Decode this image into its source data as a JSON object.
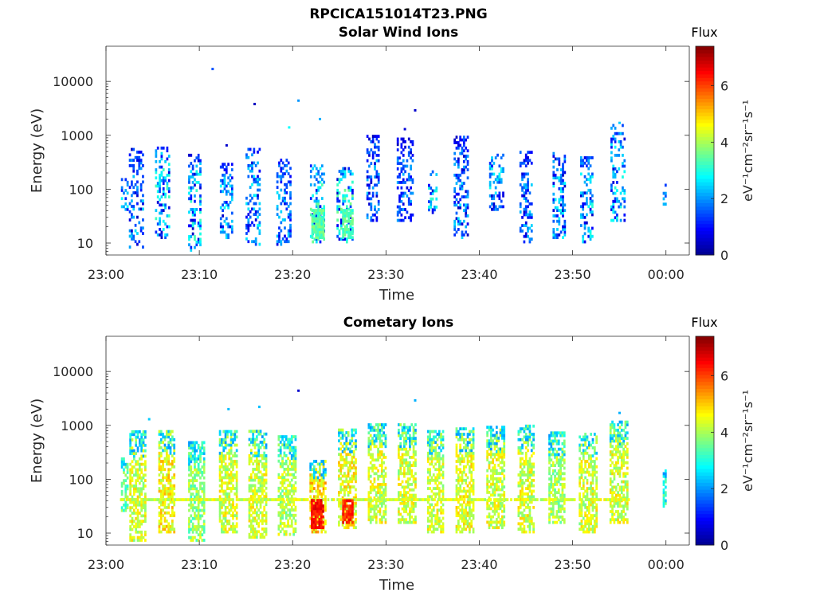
{
  "figure_title": "RPCICA151014T23.PNG",
  "colormap": [
    "#00008f",
    "#0000ff",
    "#0080ff",
    "#00ffff",
    "#80ff80",
    "#ffff00",
    "#ff8000",
    "#ff0000",
    "#800000"
  ],
  "chart_data": [
    {
      "type": "heatmap",
      "title": "Solar Wind Ions",
      "xlabel": "Time",
      "ylabel": "Energy (eV)",
      "x_ticks": [
        "23:00",
        "23:10",
        "23:20",
        "23:30",
        "23:40",
        "23:50",
        "00:00"
      ],
      "xlim_minutes": [
        0,
        62.5
      ],
      "y_scale": "log",
      "ylim": [
        6,
        45000
      ],
      "y_ticks": [
        "10",
        "100",
        "1000",
        "10000"
      ],
      "colorbar": {
        "label": "Flux",
        "unit": "eV⁻¹cm⁻²sr⁻¹s⁻¹",
        "range": [
          0,
          7.4
        ],
        "ticks": [
          "0",
          "2",
          "4",
          "6"
        ]
      },
      "bursts": [
        {
          "t": 2.0,
          "w": 0.8,
          "emin": 40,
          "emax": 150,
          "int": 2.3
        },
        {
          "t": 3.2,
          "w": 1.5,
          "emin": 8,
          "emax": 550,
          "int": 1.9
        },
        {
          "t": 6.0,
          "w": 1.5,
          "emin": 12,
          "emax": 600,
          "int": 2.6
        },
        {
          "t": 9.4,
          "w": 1.2,
          "emin": 7,
          "emax": 450,
          "int": 2.6
        },
        {
          "t": 12.8,
          "w": 1.2,
          "emin": 12,
          "emax": 300,
          "int": 2.1
        },
        {
          "t": 15.7,
          "w": 1.5,
          "emin": 9,
          "emax": 550,
          "int": 2.2
        },
        {
          "t": 19.0,
          "w": 1.5,
          "emin": 9,
          "emax": 350,
          "int": 1.9
        },
        {
          "t": 22.6,
          "w": 1.5,
          "emin": 10,
          "emax": 260,
          "int": 2.9
        },
        {
          "t": 25.5,
          "w": 1.6,
          "emin": 10,
          "emax": 230,
          "int": 3.0
        },
        {
          "t": 28.5,
          "w": 1.2,
          "emin": 25,
          "emax": 1000,
          "int": 1.8
        },
        {
          "t": 32.0,
          "w": 1.7,
          "emin": 25,
          "emax": 900,
          "int": 1.6
        },
        {
          "t": 35.0,
          "w": 1.0,
          "emin": 35,
          "emax": 250,
          "int": 2.5
        },
        {
          "t": 38.0,
          "w": 1.5,
          "emin": 12,
          "emax": 950,
          "int": 1.9
        },
        {
          "t": 41.8,
          "w": 1.5,
          "emin": 40,
          "emax": 500,
          "int": 2.3
        },
        {
          "t": 45.0,
          "w": 1.4,
          "emin": 10,
          "emax": 500,
          "int": 1.8
        },
        {
          "t": 48.5,
          "w": 1.3,
          "emin": 12,
          "emax": 450,
          "int": 2.2
        },
        {
          "t": 51.5,
          "w": 1.4,
          "emin": 10,
          "emax": 400,
          "int": 2.4
        },
        {
          "t": 54.8,
          "w": 1.5,
          "emin": 25,
          "emax": 1500,
          "int": 2.4
        },
        {
          "t": 59.8,
          "w": 0.3,
          "emin": 50,
          "emax": 120,
          "int": 1.6
        }
      ],
      "hot_spots": [
        {
          "t": 22.6,
          "w": 1.2,
          "emin": 12,
          "emax": 40,
          "int": 3.4
        },
        {
          "t": 25.8,
          "w": 1.0,
          "emin": 12,
          "emax": 40,
          "int": 3.4
        }
      ],
      "stray_points": [
        {
          "t": 11.3,
          "e": 17000,
          "int": 1.5
        },
        {
          "t": 15.8,
          "e": 3800,
          "int": 0.4
        },
        {
          "t": 20.5,
          "e": 4400,
          "int": 2.0
        },
        {
          "t": 22.8,
          "e": 2000,
          "int": 2.2
        },
        {
          "t": 31.9,
          "e": 1300,
          "int": 0.6
        },
        {
          "t": 33.0,
          "e": 2900,
          "int": 0.5
        },
        {
          "t": 54.9,
          "e": 1700,
          "int": 2.4
        },
        {
          "t": 12.8,
          "e": 650,
          "int": 0.5
        },
        {
          "t": 19.5,
          "e": 1400,
          "int": 2.8
        }
      ]
    },
    {
      "type": "heatmap",
      "title": "Cometary Ions",
      "xlabel": "Time",
      "ylabel": "Energy (eV)",
      "x_ticks": [
        "23:00",
        "23:10",
        "23:20",
        "23:30",
        "23:40",
        "23:50",
        "00:00"
      ],
      "xlim_minutes": [
        0,
        62.5
      ],
      "y_scale": "log",
      "ylim": [
        6,
        45000
      ],
      "y_ticks": [
        "10",
        "100",
        "1000",
        "10000"
      ],
      "colorbar": {
        "label": "Flux",
        "unit": "eV⁻¹cm⁻²sr⁻¹s⁻¹",
        "range": [
          0,
          7.4
        ],
        "ticks": [
          "0",
          "2",
          "4",
          "6"
        ]
      },
      "band": {
        "tmin": 1.5,
        "tmax": 56.0,
        "e": 42,
        "int": 4.3
      },
      "bursts": [
        {
          "t": 2.0,
          "w": 0.8,
          "emin": 25,
          "emax": 250,
          "int": 3.5
        },
        {
          "t": 3.4,
          "w": 1.8,
          "emin": 7,
          "emax": 800,
          "int": 4.3
        },
        {
          "t": 6.5,
          "w": 1.8,
          "emin": 10,
          "emax": 800,
          "int": 4.6
        },
        {
          "t": 9.6,
          "w": 1.6,
          "emin": 7,
          "emax": 500,
          "int": 3.8
        },
        {
          "t": 13.0,
          "w": 1.8,
          "emin": 10,
          "emax": 800,
          "int": 4.3
        },
        {
          "t": 16.2,
          "w": 1.9,
          "emin": 8,
          "emax": 750,
          "int": 4.3
        },
        {
          "t": 19.3,
          "w": 1.8,
          "emin": 9,
          "emax": 600,
          "int": 4.1
        },
        {
          "t": 22.6,
          "w": 1.6,
          "emin": 10,
          "emax": 220,
          "int": 4.8
        },
        {
          "t": 25.8,
          "w": 1.9,
          "emin": 12,
          "emax": 800,
          "int": 4.5
        },
        {
          "t": 29.0,
          "w": 1.9,
          "emin": 15,
          "emax": 1000,
          "int": 4.3
        },
        {
          "t": 32.2,
          "w": 1.9,
          "emin": 15,
          "emax": 1000,
          "int": 4.3
        },
        {
          "t": 35.3,
          "w": 1.8,
          "emin": 10,
          "emax": 800,
          "int": 4.3
        },
        {
          "t": 38.4,
          "w": 1.9,
          "emin": 10,
          "emax": 900,
          "int": 4.4
        },
        {
          "t": 41.7,
          "w": 1.9,
          "emin": 12,
          "emax": 900,
          "int": 4.3
        },
        {
          "t": 45.0,
          "w": 1.8,
          "emin": 10,
          "emax": 1000,
          "int": 4.3
        },
        {
          "t": 48.3,
          "w": 1.8,
          "emin": 15,
          "emax": 700,
          "int": 4.0
        },
        {
          "t": 51.6,
          "w": 1.9,
          "emin": 10,
          "emax": 700,
          "int": 4.3
        },
        {
          "t": 54.9,
          "w": 1.9,
          "emin": 15,
          "emax": 1200,
          "int": 4.3
        },
        {
          "t": 59.8,
          "w": 0.3,
          "emin": 30,
          "emax": 150,
          "int": 3.0
        }
      ],
      "hot_spots": [
        {
          "t": 22.6,
          "w": 1.3,
          "emin": 12,
          "emax": 40,
          "int": 6.4
        },
        {
          "t": 25.8,
          "w": 1.0,
          "emin": 15,
          "emax": 40,
          "int": 6.2
        }
      ],
      "stray_points": [
        {
          "t": 20.5,
          "e": 4400,
          "int": 0.5
        },
        {
          "t": 13.0,
          "e": 2000,
          "int": 2.3
        },
        {
          "t": 16.3,
          "e": 2200,
          "int": 2.3
        },
        {
          "t": 33.0,
          "e": 2900,
          "int": 2.2
        },
        {
          "t": 54.9,
          "e": 1700,
          "int": 2.2
        },
        {
          "t": 4.5,
          "e": 1300,
          "int": 2.4
        }
      ]
    }
  ]
}
